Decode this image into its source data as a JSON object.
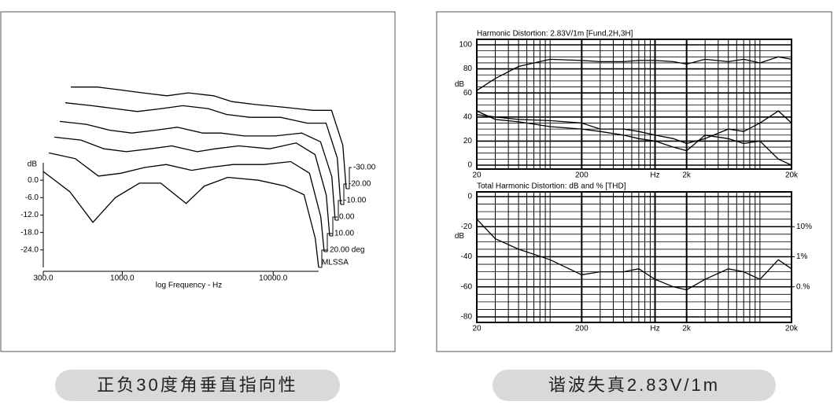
{
  "captions": [
    "正负30度角垂直指向性",
    "谐波失真2.83V/1m"
  ],
  "chart_data": [
    {
      "type": "waterfall",
      "xlabel": "log Frequency - Hz",
      "ylabel": "dB",
      "xscale": "log",
      "xlim": [
        300,
        20000
      ],
      "ylim": [
        -30,
        6
      ],
      "xticks": [
        {
          "value": 300,
          "label": "300.0"
        },
        {
          "value": 1000,
          "label": "1000.0"
        },
        {
          "value": 10000,
          "label": "10000.0"
        }
      ],
      "yticks": [
        {
          "value": 0,
          "label": "0.0"
        },
        {
          "value": -6,
          "label": "-6.0"
        },
        {
          "value": -12,
          "label": "-12.0"
        },
        {
          "value": -18,
          "label": "-18.0"
        },
        {
          "value": -24,
          "label": "-24.0"
        }
      ],
      "annotation": "MLSSA",
      "x": [
        300,
        450,
        640,
        900,
        1300,
        1800,
        2650,
        3500,
        5000,
        8000,
        12000,
        16000,
        19000,
        20000
      ],
      "series": [
        {
          "name": "-30.00",
          "color": "#000000",
          "values": [
            5,
            5,
            4,
            3,
            2,
            3,
            2,
            0,
            -1,
            -2,
            -3,
            -3,
            -15,
            -30
          ]
        },
        {
          "name": "-20.00",
          "color": "#000000",
          "values": [
            5,
            4,
            3,
            2,
            3,
            4,
            3,
            1,
            0,
            0,
            -2,
            -2,
            -14,
            -30
          ]
        },
        {
          "name": "-10.00",
          "color": "#000000",
          "values": [
            4,
            3,
            1,
            0,
            1,
            2,
            0,
            0,
            -1,
            -1,
            0,
            -3,
            -15,
            -30
          ]
        },
        {
          "name": "0.00",
          "color": "#000000",
          "values": [
            4,
            3,
            0,
            -1,
            0,
            1,
            -1,
            0,
            1,
            0,
            2,
            -2,
            -16,
            -30
          ]
        },
        {
          "name": "10.00",
          "color": "#000000",
          "values": [
            4,
            2,
            -4,
            -3,
            -1,
            0,
            -2,
            -1,
            0,
            0,
            1,
            -3,
            -18,
            -30
          ]
        },
        {
          "name": "20.00 deg",
          "color": "#000000",
          "values": [
            3,
            -4,
            -14.5,
            -6,
            -1,
            -1,
            -8,
            -2,
            1,
            0,
            -2,
            -5,
            -20,
            -30
          ]
        }
      ]
    },
    {
      "type": "line",
      "title": "Harmonic Distortion: 2.83V/1m [Fund,2H,3H]",
      "ylabel": "dB",
      "xscale": "log",
      "grid": true,
      "xlim": [
        20,
        20000
      ],
      "ylim": [
        0,
        100
      ],
      "xticks": [
        20,
        200,
        {
          "value": 1000,
          "label": "Hz"
        },
        {
          "value": 2000,
          "label": "2k"
        },
        {
          "value": 20000,
          "label": "20k"
        }
      ],
      "yticks": [
        0,
        20,
        40,
        60,
        80,
        100
      ],
      "x": [
        20,
        30,
        50,
        100,
        200,
        300,
        500,
        700,
        1000,
        1500,
        2000,
        3000,
        5000,
        7000,
        10000,
        15000,
        20000
      ],
      "series": [
        {
          "color": "#000000",
          "values": [
            62,
            72,
            82,
            88,
            87,
            86,
            86,
            87,
            87,
            86,
            84,
            88,
            86,
            88,
            85,
            90,
            88
          ]
        },
        {
          "color": "#000000",
          "values": [
            42,
            40,
            38,
            37,
            35,
            30,
            30,
            28,
            25,
            22,
            18,
            22,
            30,
            28,
            35,
            45,
            35
          ]
        },
        {
          "color": "#000000",
          "values": [
            45,
            38,
            36,
            32,
            30,
            28,
            25,
            22,
            20,
            15,
            12,
            25,
            22,
            18,
            20,
            5,
            0
          ]
        }
      ]
    },
    {
      "type": "line",
      "title": "Total Harmonic Distortion: dB and % [THD]",
      "ylabel": "dB",
      "xscale": "log",
      "grid": true,
      "xlim": [
        20,
        20000
      ],
      "ylim": [
        -80,
        0
      ],
      "y2lim": [
        0.01,
        100
      ],
      "y2scale": "log",
      "xticks": [
        20,
        200,
        {
          "value": 1000,
          "label": "Hz"
        },
        {
          "value": 2000,
          "label": "2k"
        },
        {
          "value": 20000,
          "label": "20k"
        }
      ],
      "yticks": [
        0,
        -20,
        -40,
        -60,
        -80
      ],
      "y2ticks": [
        {
          "value": 10,
          "label": "10%"
        },
        {
          "value": 1,
          "label": "1%"
        },
        {
          "value": 0.1,
          "label": "0.%"
        }
      ],
      "x": [
        20,
        30,
        50,
        100,
        200,
        300,
        500,
        700,
        1000,
        1500,
        2000,
        3000,
        5000,
        7000,
        10000,
        15000,
        20000
      ],
      "series": [
        {
          "color": "#000000",
          "values": [
            -15,
            -28,
            -35,
            -42,
            -52,
            -50,
            -50,
            -48,
            -55,
            -60,
            -62,
            -55,
            -48,
            -50,
            -55,
            -42,
            -48
          ]
        }
      ]
    }
  ]
}
